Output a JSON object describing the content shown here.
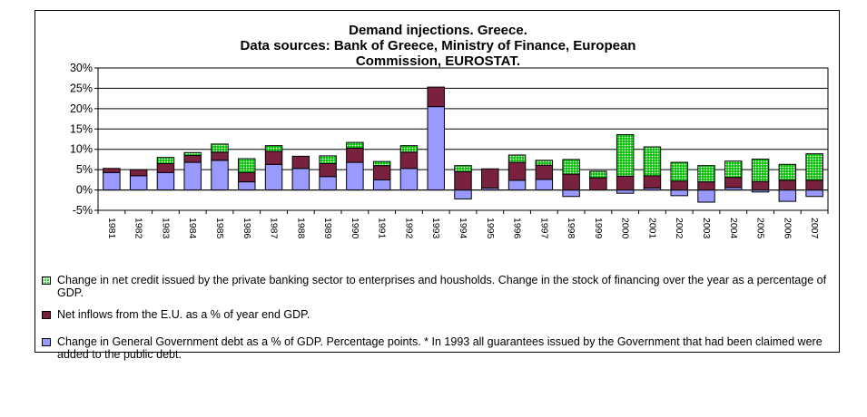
{
  "chart_data": {
    "type": "bar",
    "stacked": true,
    "title": "Demand injections. Greece.",
    "subtitle_lines": [
      "Data sources: Bank of Greece, Ministry of Finance, European",
      "Commission, EUROSTAT."
    ],
    "categories": [
      "1981",
      "1982",
      "1983",
      "1984",
      "1985",
      "1986",
      "1987",
      "1988",
      "1989",
      "1990",
      "1991",
      "1992",
      "1993",
      "1994",
      "1995",
      "1996",
      "1997",
      "1998",
      "1999",
      "2000",
      "2001",
      "2002",
      "2003",
      "2004",
      "2005",
      "2006",
      "2007"
    ],
    "y_ticks": [
      "30%",
      "25%",
      "20%",
      "15%",
      "10%",
      "5%",
      "0%",
      "-5%"
    ],
    "ylim": [
      -5,
      30
    ],
    "grid": "horizontal",
    "legend_position": "bottom",
    "series": [
      {
        "name": "Change in General Government debt as a % of GDP. Percentage points. * In 1993 all guarantees issued by the Government that had been claimed were added to the public debt.",
        "color": "#9999ff",
        "values": [
          4.3,
          3.5,
          4.3,
          6.8,
          7.3,
          2.0,
          6.3,
          5.3,
          3.3,
          6.8,
          2.5,
          5.3,
          20.5,
          -2.2,
          0.5,
          2.4,
          2.6,
          -1.6,
          0.0,
          -0.8,
          0.5,
          -1.4,
          -3.0,
          0.6,
          -0.5,
          -2.8,
          -1.6
        ]
      },
      {
        "name": "Net inflows from the E.U. as a % of year end GDP.",
        "color": "#7b2140",
        "values": [
          1.0,
          1.5,
          2.2,
          1.7,
          2.0,
          2.3,
          3.2,
          3.0,
          3.2,
          3.5,
          3.5,
          4.0,
          4.8,
          4.5,
          4.7,
          4.4,
          3.5,
          3.9,
          3.0,
          3.4,
          3.0,
          2.2,
          2.0,
          2.5,
          2.1,
          2.4,
          2.4
        ]
      },
      {
        "name": "Change in net credit issued by the private banking sector to enterprises and housholds. Change in the stock of financing over the year as a percentage of GDP.",
        "color": "#00c000",
        "values": [
          0.0,
          0.0,
          1.5,
          0.7,
          2.0,
          3.4,
          1.4,
          0.0,
          1.9,
          1.4,
          1.0,
          1.6,
          0.0,
          1.5,
          0.0,
          1.8,
          1.2,
          3.6,
          1.6,
          10.2,
          7.1,
          4.6,
          4.0,
          4.0,
          5.5,
          3.9,
          6.5
        ]
      }
    ]
  }
}
